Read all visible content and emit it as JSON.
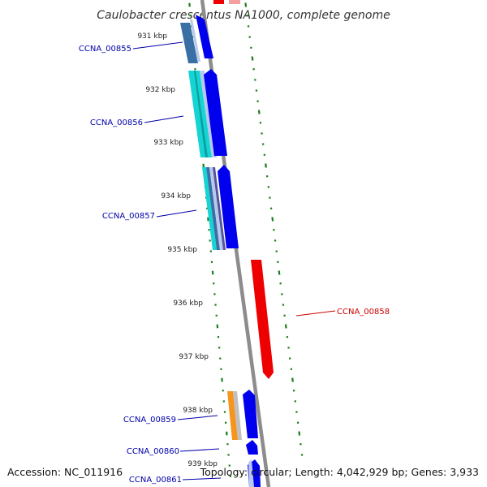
{
  "title": "Caulobacter crescentus NA1000, complete genome",
  "accession_text": "Accession: NC_011916",
  "summary_text": "Topology: circular; Length: 4,042,929 bp; Genes: 3,933",
  "colors": {
    "backbone": "#8c8c8c",
    "tick": "#1a7d1a",
    "forward_gene": "#0000ee",
    "reverse_gene": "#ee0000",
    "forward_label": "#0000aa",
    "reverse_label": "#cc0000",
    "steelblue_feature": "#3a6fa5",
    "cyan_feature": "#14d4d4",
    "lightblue_feature": "#b9c8ee",
    "orange_feature": "#f7941d",
    "gray_feature": "#c0c0c0"
  },
  "kbp_ticks": [
    "931 kbp",
    "932 kbp",
    "933 kbp",
    "934 kbp",
    "935 kbp",
    "936 kbp",
    "937 kbp",
    "938 kbp",
    "939 kbp"
  ],
  "genes": [
    {
      "name": "CCNA_00855",
      "strand": "forward"
    },
    {
      "name": "CCNA_00856",
      "strand": "forward"
    },
    {
      "name": "CCNA_00857",
      "strand": "forward"
    },
    {
      "name": "CCNA_00858",
      "strand": "reverse"
    },
    {
      "name": "CCNA_00859",
      "strand": "forward"
    },
    {
      "name": "CCNA_00860",
      "strand": "forward"
    },
    {
      "name": "CCNA_00861",
      "strand": "forward"
    }
  ]
}
